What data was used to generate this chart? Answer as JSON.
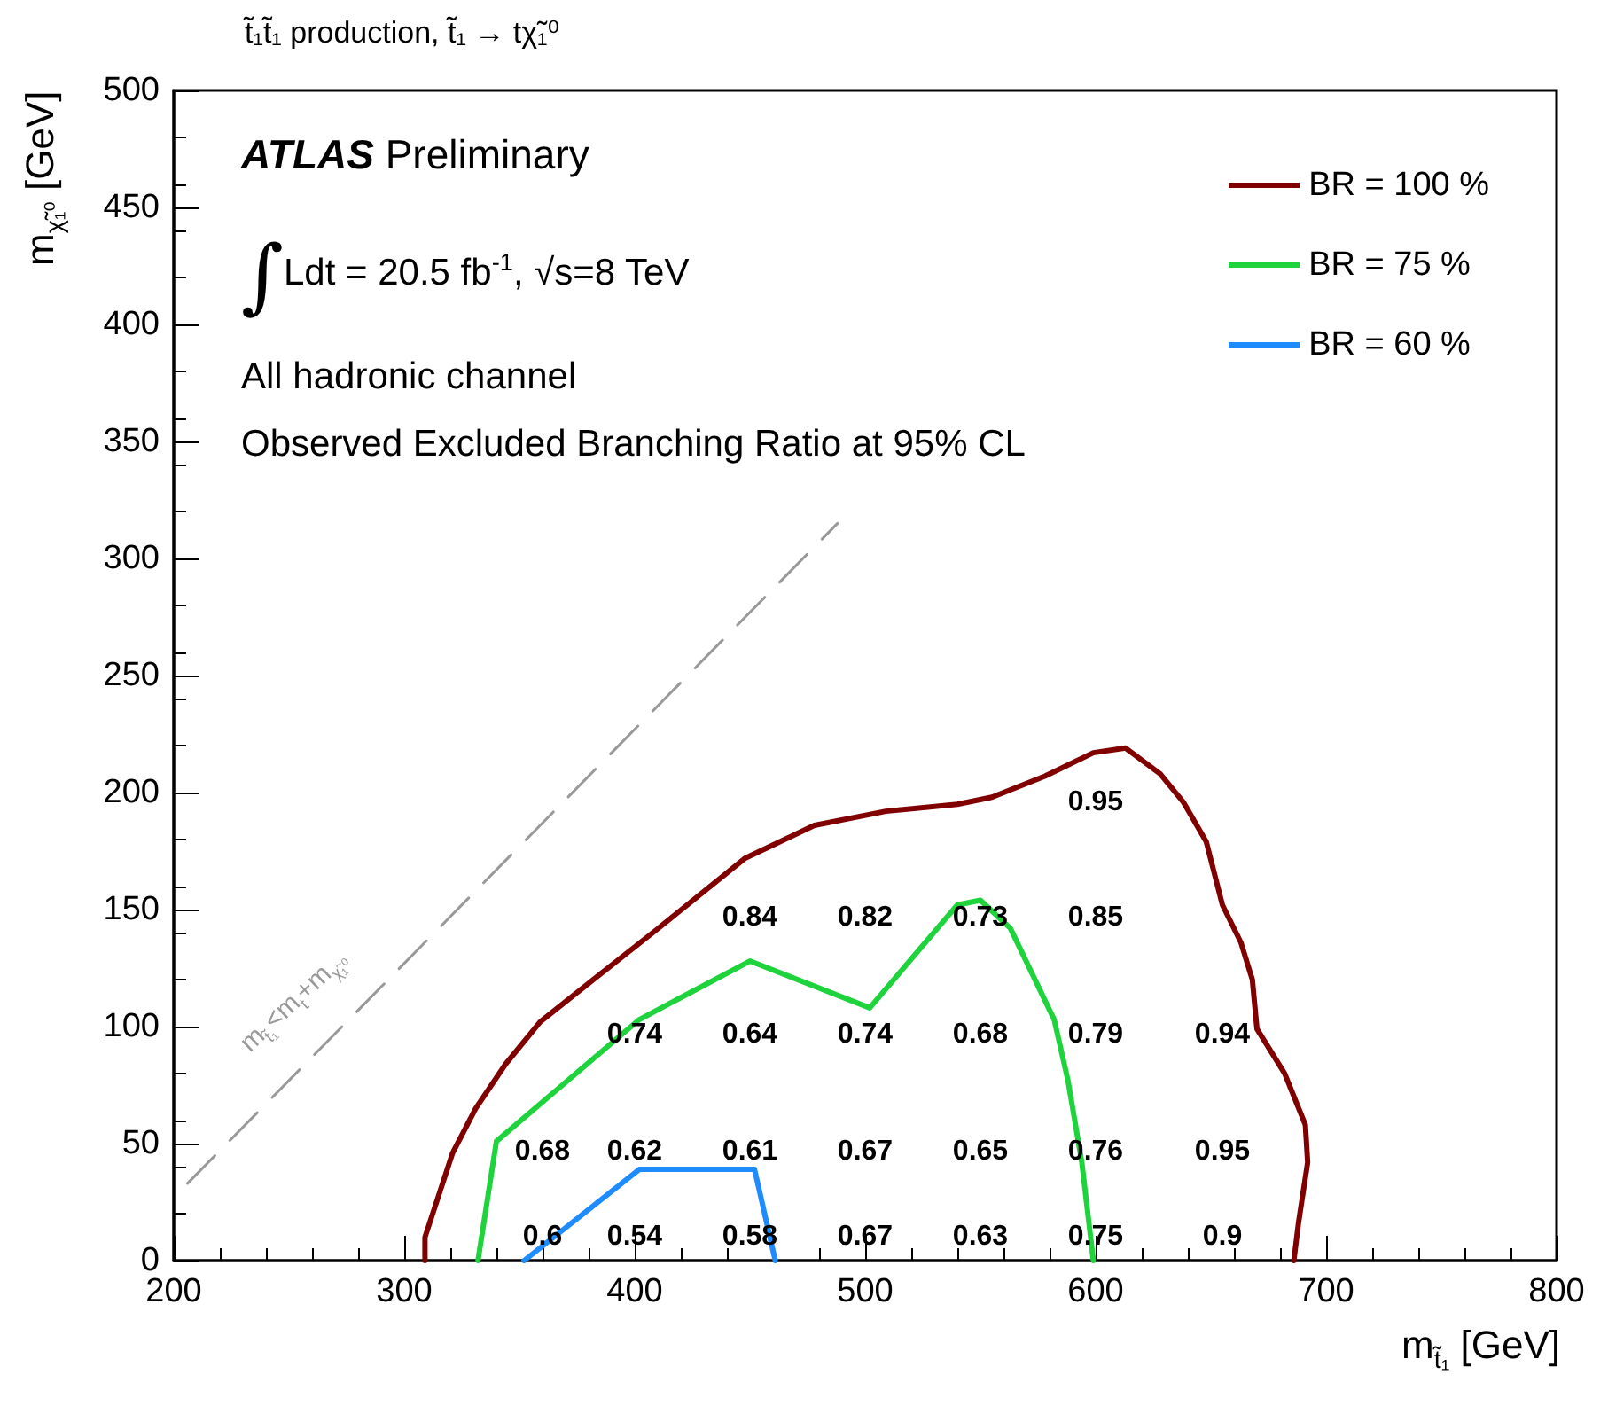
{
  "chart_data": {
    "type": "line",
    "title": "t̃₁t̃₁ production, t̃₁ → tχ̃₁⁰",
    "xlabel": "m$_{t̃₁}$ [GeV]",
    "ylabel": "m$_{χ̃₁⁰}$ [GeV]",
    "xlim": [
      200,
      800
    ],
    "xticks": [
      200,
      300,
      400,
      500,
      600,
      700,
      800
    ],
    "ylim": [
      0,
      500
    ],
    "yticks": [
      0,
      50,
      100,
      150,
      200,
      250,
      300,
      350,
      400,
      450,
      500
    ],
    "grid": false,
    "legend": "top right",
    "marker": "none",
    "series": [
      {
        "name": "BR = 100 %",
        "color": "#800000",
        "x": [
          309,
          309,
          321,
          331,
          344,
          359,
          382,
          409,
          448,
          478,
          509,
          540,
          555,
          578,
          599,
          613,
          628,
          638,
          648,
          655,
          663,
          668,
          670,
          682,
          691,
          692,
          688,
          686
        ],
        "values": [
          0,
          10,
          46,
          65,
          84,
          102,
          120,
          141,
          172,
          186,
          192,
          195,
          198,
          207,
          217,
          219,
          208,
          196,
          179,
          152,
          136,
          120,
          99,
          80,
          58,
          42,
          16,
          0
        ]
      },
      {
        "name": "BR = 75 %",
        "color": "#1ed33c",
        "x": [
          332,
          340,
          402,
          450,
          502,
          540,
          550,
          563,
          582,
          588,
          594,
          599
        ],
        "values": [
          0,
          51,
          103,
          128,
          108,
          152,
          154,
          142,
          103,
          77,
          42,
          0
        ]
      },
      {
        "name": "BR = 60 %",
        "color": "#1e8cff",
        "x": [
          352,
          402,
          452,
          461
        ],
        "values": [
          0,
          39,
          39,
          0
        ]
      },
      {
        "color": "#999999",
        "line_style": "dashed",
        "x": [
          206,
          488
        ],
        "values": [
          33,
          315
        ]
      }
    ],
    "annotations": [
      "ATLAS Preliminary",
      "∫Ldt = 20.5 fb$^{-1}$, √s=8 TeV",
      "All hadronic channel",
      "Observed Excluded Branching Ratio at 95% CL",
      "m$_{t̃₁}$<m$_{t}$+m$_{χ̃₁⁰}$",
      "0.6",
      "0.54",
      "0.58",
      "0.67",
      "0.63",
      "0.75",
      "0.9",
      "0.68",
      "0.62",
      "0.61",
      "0.67",
      "0.65",
      "0.76",
      "0.95",
      "0.74",
      "0.64",
      "0.74",
      "0.68",
      "0.79",
      "0.94",
      "0.84",
      "0.82",
      "0.73",
      "0.85",
      "0.95"
    ]
  }
}
